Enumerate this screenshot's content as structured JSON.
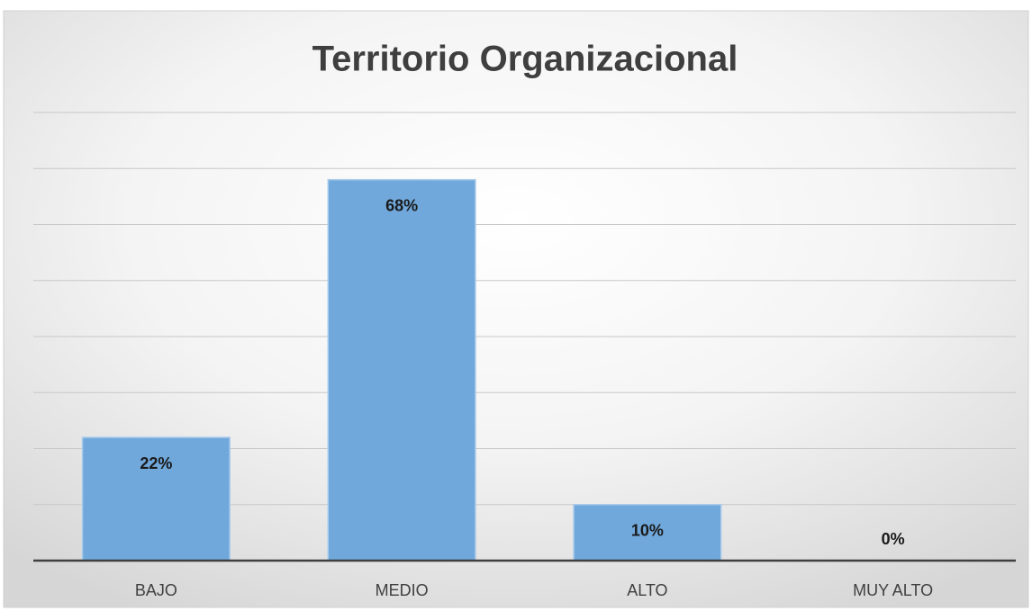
{
  "chart_data": {
    "type": "bar",
    "title": "Territorio Organizacional",
    "categories": [
      "BAJO",
      "MEDIO",
      "ALTO",
      "MUY ALTO"
    ],
    "values": [
      22,
      68,
      10,
      0
    ],
    "value_labels": [
      "22%",
      "68%",
      "10%",
      "0%"
    ],
    "color": "#70a8dc",
    "ylim": [
      0,
      80
    ],
    "yticks": [
      0,
      10,
      20,
      30,
      40,
      50,
      60,
      70,
      80
    ],
    "grid": true
  }
}
